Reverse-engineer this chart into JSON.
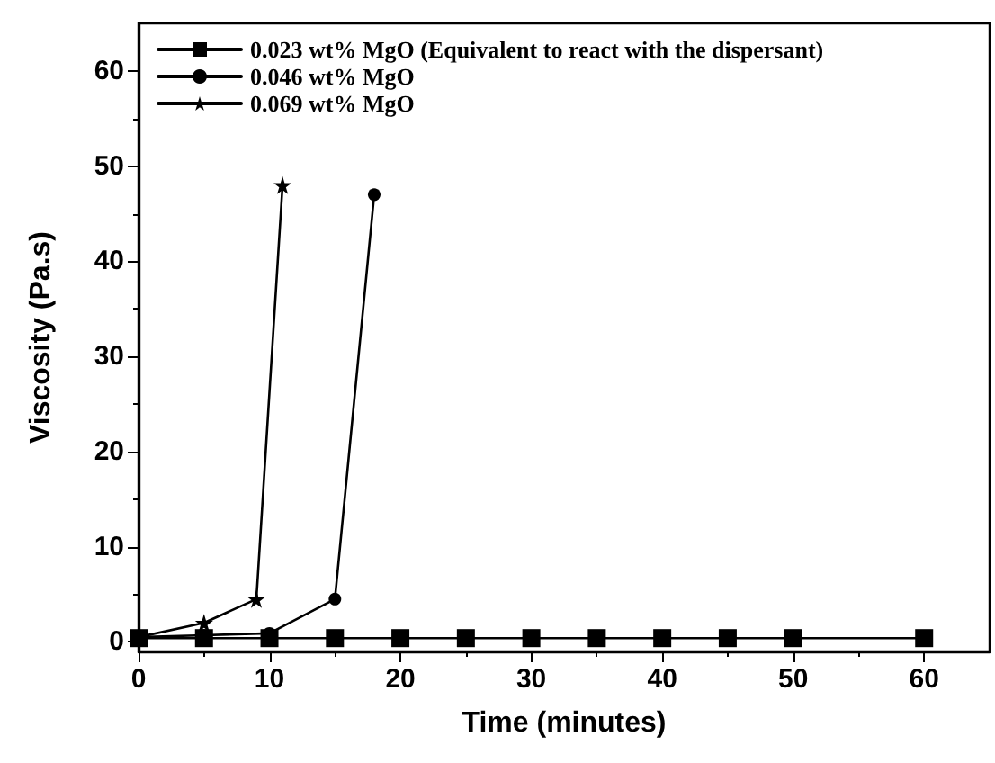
{
  "chart_data": {
    "type": "line",
    "xlabel": "Time (minutes)",
    "ylabel": "Viscosity (Pa.s)",
    "xlim": [
      0,
      65
    ],
    "xticks": [
      0,
      10,
      20,
      30,
      40,
      50,
      60
    ],
    "ylim": [
      -1,
      65
    ],
    "yticks": [
      0,
      10,
      20,
      30,
      40,
      50,
      60
    ],
    "grid": false,
    "legend": "top left",
    "line_style": "solid",
    "series": [
      {
        "name": "0.023 wt% MgO (Equivalent to react with the dispersant)",
        "color": "#000000",
        "marker": "square",
        "x": [
          0,
          5,
          10,
          15,
          20,
          25,
          30,
          35,
          40,
          45,
          50,
          60
        ],
        "values": [
          0.4,
          0.4,
          0.4,
          0.4,
          0.4,
          0.4,
          0.4,
          0.4,
          0.4,
          0.4,
          0.4,
          0.4
        ]
      },
      {
        "name": "0.046 wt% MgO",
        "color": "#000000",
        "marker": "circle",
        "x": [
          0,
          5,
          10,
          15,
          18
        ],
        "values": [
          0.5,
          0.7,
          0.9,
          4.5,
          47
        ]
      },
      {
        "name": "0.069 wt% MgO",
        "color": "#000000",
        "marker": "star",
        "x": [
          0,
          5,
          9,
          11
        ],
        "values": [
          0.5,
          2,
          4.5,
          48
        ]
      }
    ]
  }
}
